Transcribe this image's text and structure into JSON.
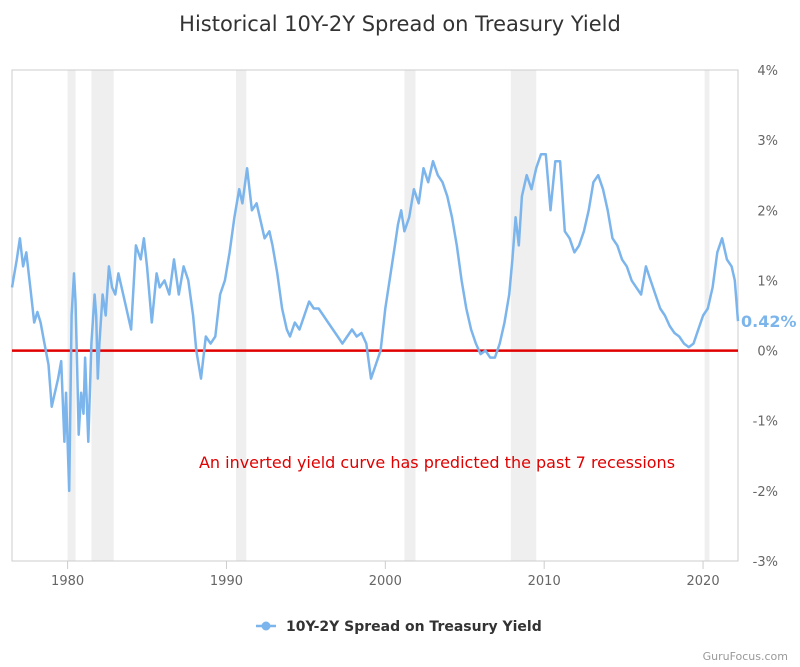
{
  "chart_data": {
    "type": "line",
    "title": "Historical 10Y-2Y Spread on Treasury Yield",
    "xlabel": "",
    "ylabel": "",
    "xlim": [
      1976.5,
      2022.2
    ],
    "ylim": [
      -3,
      4
    ],
    "x_ticks": [
      1980,
      1990,
      2000,
      2010,
      2020
    ],
    "y_ticks": [
      -3,
      -2,
      -1,
      0,
      1,
      2,
      3,
      4
    ],
    "y_tick_labels": [
      "-3%",
      "-2%",
      "-1%",
      "0%",
      "1%",
      "2%",
      "3%",
      "4%"
    ],
    "grid": false,
    "legend_position": "bottom-center",
    "series": [
      {
        "name": "10Y-2Y Spread on Treasury Yield",
        "color": "#7cb5ec",
        "x": [
          1976.5,
          1976.8,
          1977.0,
          1977.2,
          1977.4,
          1977.7,
          1977.9,
          1978.1,
          1978.3,
          1978.5,
          1978.8,
          1979.0,
          1979.2,
          1979.4,
          1979.6,
          1979.8,
          1979.9,
          1980.1,
          1980.25,
          1980.4,
          1980.5,
          1980.6,
          1980.7,
          1980.85,
          1981.0,
          1981.1,
          1981.3,
          1981.5,
          1981.7,
          1981.8,
          1981.9,
          1982.0,
          1982.2,
          1982.4,
          1982.6,
          1982.8,
          1983.0,
          1983.2,
          1983.4,
          1983.7,
          1984.0,
          1984.3,
          1984.6,
          1984.8,
          1985.0,
          1985.3,
          1985.6,
          1985.8,
          1986.1,
          1986.4,
          1986.7,
          1987.0,
          1987.3,
          1987.6,
          1987.9,
          1988.1,
          1988.4,
          1988.7,
          1989.0,
          1989.3,
          1989.6,
          1989.9,
          1990.2,
          1990.5,
          1990.8,
          1991.0,
          1991.3,
          1991.6,
          1991.9,
          1992.1,
          1992.4,
          1992.7,
          1992.9,
          1993.2,
          1993.5,
          1993.8,
          1994.0,
          1994.3,
          1994.6,
          1994.9,
          1995.2,
          1995.5,
          1995.8,
          1996.1,
          1996.4,
          1996.7,
          1997.0,
          1997.3,
          1997.6,
          1997.9,
          1998.2,
          1998.5,
          1998.8,
          1999.1,
          1999.4,
          1999.7,
          2000.0,
          2000.2,
          2000.4,
          2000.6,
          2000.8,
          2001.0,
          2001.2,
          2001.5,
          2001.8,
          2002.1,
          2002.4,
          2002.7,
          2003.0,
          2003.3,
          2003.6,
          2003.9,
          2004.2,
          2004.5,
          2004.8,
          2005.1,
          2005.4,
          2005.7,
          2006.0,
          2006.3,
          2006.6,
          2006.9,
          2007.2,
          2007.5,
          2007.8,
          2008.0,
          2008.2,
          2008.4,
          2008.6,
          2008.9,
          2009.2,
          2009.5,
          2009.8,
          2010.1,
          2010.4,
          2010.7,
          2011.0,
          2011.3,
          2011.6,
          2011.9,
          2012.2,
          2012.5,
          2012.8,
          2013.1,
          2013.4,
          2013.7,
          2014.0,
          2014.3,
          2014.6,
          2014.9,
          2015.2,
          2015.5,
          2015.8,
          2016.1,
          2016.4,
          2016.7,
          2017.0,
          2017.3,
          2017.6,
          2017.9,
          2018.2,
          2018.5,
          2018.8,
          2019.1,
          2019.4,
          2019.7,
          2020.0,
          2020.3,
          2020.6,
          2020.9,
          2021.2,
          2021.5,
          2021.8,
          2022.0,
          2022.2
        ],
        "values": [
          0.9,
          1.3,
          1.6,
          1.2,
          1.4,
          0.8,
          0.4,
          0.55,
          0.4,
          0.15,
          -0.2,
          -0.8,
          -0.6,
          -0.4,
          -0.15,
          -1.3,
          -0.6,
          -2.0,
          0.5,
          1.1,
          0.7,
          -0.2,
          -1.2,
          -0.6,
          -0.9,
          -0.1,
          -1.3,
          0.1,
          0.8,
          0.5,
          -0.4,
          0.1,
          0.8,
          0.5,
          1.2,
          0.9,
          0.8,
          1.1,
          0.9,
          0.6,
          0.3,
          1.5,
          1.3,
          1.6,
          1.2,
          0.4,
          1.1,
          0.9,
          1.0,
          0.8,
          1.3,
          0.8,
          1.2,
          1.0,
          0.5,
          0.0,
          -0.4,
          0.2,
          0.1,
          0.2,
          0.8,
          1.0,
          1.4,
          1.9,
          2.3,
          2.1,
          2.6,
          2.0,
          2.1,
          1.9,
          1.6,
          1.7,
          1.5,
          1.1,
          0.6,
          0.3,
          0.2,
          0.4,
          0.3,
          0.5,
          0.7,
          0.6,
          0.6,
          0.5,
          0.4,
          0.3,
          0.2,
          0.1,
          0.2,
          0.3,
          0.2,
          0.25,
          0.1,
          -0.4,
          -0.2,
          0.0,
          0.6,
          0.9,
          1.2,
          1.5,
          1.8,
          2.0,
          1.7,
          1.9,
          2.3,
          2.1,
          2.6,
          2.4,
          2.7,
          2.5,
          2.4,
          2.2,
          1.9,
          1.5,
          1.0,
          0.6,
          0.3,
          0.1,
          -0.05,
          0.0,
          -0.1,
          -0.1,
          0.1,
          0.4,
          0.8,
          1.3,
          1.9,
          1.5,
          2.2,
          2.5,
          2.3,
          2.6,
          2.8,
          2.8,
          2.0,
          2.7,
          2.7,
          1.7,
          1.6,
          1.4,
          1.5,
          1.7,
          2.0,
          2.4,
          2.5,
          2.3,
          2.0,
          1.6,
          1.5,
          1.3,
          1.2,
          1.0,
          0.9,
          0.8,
          1.2,
          1.0,
          0.8,
          0.6,
          0.5,
          0.35,
          0.25,
          0.2,
          0.1,
          0.05,
          0.1,
          0.3,
          0.5,
          0.6,
          0.9,
          1.4,
          1.6,
          1.3,
          1.2,
          1.0,
          0.42
        ]
      }
    ],
    "recession_bands": [
      [
        1980.0,
        1980.5
      ],
      [
        1981.5,
        1982.9
      ],
      [
        1990.6,
        1991.25
      ],
      [
        2001.2,
        2001.9
      ],
      [
        2007.9,
        2009.5
      ],
      [
        2020.1,
        2020.4
      ]
    ],
    "reference_line": {
      "value": 0,
      "color": "#e00000"
    },
    "last_value_label": "0.42%",
    "annotation": {
      "text": "An inverted yield curve has predicted the past 7 recessions",
      "color": "#e00000"
    },
    "credit": "GuruFocus.com",
    "colors": {
      "line": "#7cb5ec",
      "recession_band": "#efefef",
      "reference_line": "#e00000",
      "axis": "#cccccc"
    }
  }
}
